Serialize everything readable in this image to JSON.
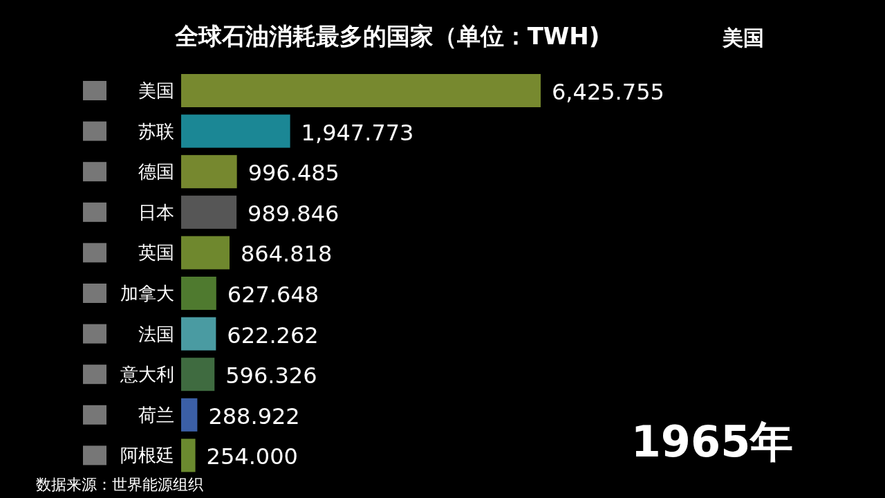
{
  "chart_data": {
    "type": "bar",
    "orientation": "horizontal",
    "title": "全球石油消耗最多的国家（单位：TWH)",
    "categories": [
      "美国",
      "苏联",
      "德国",
      "日本",
      "英国",
      "加拿大",
      "法国",
      "意大利",
      "荷兰",
      "阿根廷"
    ],
    "values": [
      6425.755,
      1947.773,
      996.485,
      989.846,
      864.818,
      627.648,
      622.262,
      596.326,
      288.922,
      254.0
    ],
    "value_labels": [
      "6,425.755",
      "1,947.773",
      "996.485",
      "989.846",
      "864.818",
      "627.648",
      "622.262",
      "596.326",
      "288.922",
      "254.000"
    ],
    "colors": [
      "#77892f",
      "#1b8795",
      "#76882f",
      "#565656",
      "#6f882e",
      "#4f7a2f",
      "#4a9ba2",
      "#3f6b40",
      "#3b5fa6",
      "#6b8a2f"
    ],
    "annotations": [
      "美国",
      "1965年",
      "数据来源：世界能源组织"
    ]
  }
}
